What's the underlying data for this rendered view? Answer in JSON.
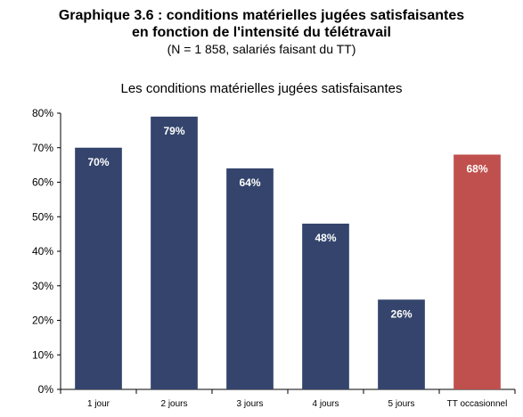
{
  "header": {
    "title_line1": "Graphique 3.6 : conditions matérielles jugées satisfaisantes",
    "title_line2": "en fonction de l'intensité du télétravail",
    "title_line3": "(N = 1 858, salariés faisant du TT)"
  },
  "chart_data": {
    "type": "bar",
    "title": "Les conditions matérielles jugées satisfaisantes",
    "categories": [
      "1 jour",
      "2 jours",
      "3 jours",
      "4 jours",
      "5 jours",
      "TT occasionnel"
    ],
    "values": [
      70,
      79,
      64,
      48,
      26,
      68
    ],
    "value_labels": [
      "70%",
      "79%",
      "64%",
      "48%",
      "26%",
      "68%"
    ],
    "ylim": [
      0,
      80
    ],
    "yticks": [
      0,
      10,
      20,
      30,
      40,
      50,
      60,
      70,
      80
    ],
    "ytick_labels": [
      "0%",
      "10%",
      "20%",
      "30%",
      "40%",
      "50%",
      "60%",
      "70%",
      "80%"
    ],
    "grid": false,
    "legend": "none",
    "colors": [
      "#34446c",
      "#34446c",
      "#34446c",
      "#34446c",
      "#34446c",
      "#c0504d"
    ]
  }
}
